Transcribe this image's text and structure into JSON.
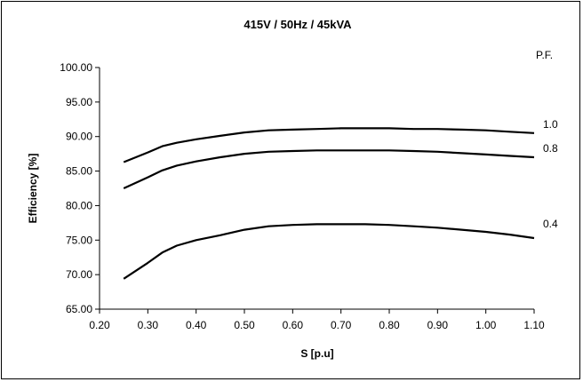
{
  "chart_data": {
    "type": "line",
    "title": "415V / 50Hz / 45kVA",
    "xlabel": "S [p.u]",
    "ylabel": "Efficiency [%]",
    "legend_title": "P.F.",
    "xlim": [
      0.2,
      1.1
    ],
    "ylim": [
      65.0,
      100.0
    ],
    "x_ticks": [
      "0.20",
      "0.30",
      "0.40",
      "0.50",
      "0.60",
      "0.70",
      "0.80",
      "0.90",
      "1.00",
      "1.10"
    ],
    "y_ticks": [
      "65.00",
      "70.00",
      "75.00",
      "80.00",
      "85.00",
      "90.00",
      "95.00",
      "100.00"
    ],
    "grid": false,
    "series": [
      {
        "name": "1.0",
        "x": [
          0.25,
          0.3,
          0.33,
          0.36,
          0.4,
          0.45,
          0.5,
          0.55,
          0.6,
          0.65,
          0.7,
          0.75,
          0.8,
          0.85,
          0.9,
          0.95,
          1.0,
          1.05,
          1.1
        ],
        "y": [
          86.3,
          87.7,
          88.6,
          89.1,
          89.6,
          90.1,
          90.6,
          90.9,
          91.0,
          91.1,
          91.2,
          91.2,
          91.2,
          91.1,
          91.1,
          91.0,
          90.9,
          90.7,
          90.5
        ]
      },
      {
        "name": "0.8",
        "x": [
          0.25,
          0.3,
          0.33,
          0.36,
          0.4,
          0.45,
          0.5,
          0.55,
          0.6,
          0.65,
          0.7,
          0.75,
          0.8,
          0.85,
          0.9,
          0.95,
          1.0,
          1.05,
          1.1
        ],
        "y": [
          82.5,
          84.1,
          85.1,
          85.8,
          86.4,
          87.0,
          87.5,
          87.8,
          87.9,
          88.0,
          88.0,
          88.0,
          88.0,
          87.9,
          87.8,
          87.6,
          87.4,
          87.2,
          87.0
        ]
      },
      {
        "name": "0.4",
        "x": [
          0.25,
          0.3,
          0.33,
          0.36,
          0.4,
          0.45,
          0.5,
          0.55,
          0.6,
          0.65,
          0.7,
          0.75,
          0.8,
          0.85,
          0.9,
          0.95,
          1.0,
          1.05,
          1.1
        ],
        "y": [
          69.4,
          71.7,
          73.2,
          74.2,
          75.0,
          75.7,
          76.5,
          77.0,
          77.2,
          77.3,
          77.3,
          77.3,
          77.2,
          77.0,
          76.8,
          76.5,
          76.2,
          75.8,
          75.3
        ]
      }
    ]
  }
}
